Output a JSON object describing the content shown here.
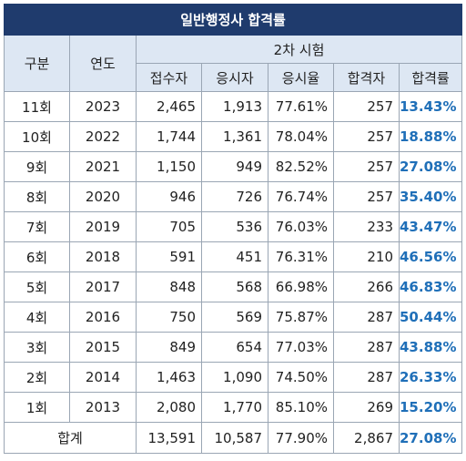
{
  "title": "일반행정사 합격률",
  "headers": {
    "category": "구분",
    "year": "연도",
    "group": "2차 시험",
    "applicants": "접수자",
    "examinees": "응시자",
    "exam_rate": "응시율",
    "passers": "합격자",
    "pass_rate": "합격률"
  },
  "rows": [
    {
      "round": "11회",
      "year": "2023",
      "applicants": "2,465",
      "examinees": "1,913",
      "exam_rate": "77.61%",
      "passers": "257",
      "pass_rate": "13.43%"
    },
    {
      "round": "10회",
      "year": "2022",
      "applicants": "1,744",
      "examinees": "1,361",
      "exam_rate": "78.04%",
      "passers": "257",
      "pass_rate": "18.88%"
    },
    {
      "round": "9회",
      "year": "2021",
      "applicants": "1,150",
      "examinees": "949",
      "exam_rate": "82.52%",
      "passers": "257",
      "pass_rate": "27.08%"
    },
    {
      "round": "8회",
      "year": "2020",
      "applicants": "946",
      "examinees": "726",
      "exam_rate": "76.74%",
      "passers": "257",
      "pass_rate": "35.40%"
    },
    {
      "round": "7회",
      "year": "2019",
      "applicants": "705",
      "examinees": "536",
      "exam_rate": "76.03%",
      "passers": "233",
      "pass_rate": "43.47%"
    },
    {
      "round": "6회",
      "year": "2018",
      "applicants": "591",
      "examinees": "451",
      "exam_rate": "76.31%",
      "passers": "210",
      "pass_rate": "46.56%"
    },
    {
      "round": "5회",
      "year": "2017",
      "applicants": "848",
      "examinees": "568",
      "exam_rate": "66.98%",
      "passers": "266",
      "pass_rate": "46.83%"
    },
    {
      "round": "4회",
      "year": "2016",
      "applicants": "750",
      "examinees": "569",
      "exam_rate": "75.87%",
      "passers": "287",
      "pass_rate": "50.44%"
    },
    {
      "round": "3회",
      "year": "2015",
      "applicants": "849",
      "examinees": "654",
      "exam_rate": "77.03%",
      "passers": "287",
      "pass_rate": "43.88%"
    },
    {
      "round": "2회",
      "year": "2014",
      "applicants": "1,463",
      "examinees": "1,090",
      "exam_rate": "74.50%",
      "passers": "287",
      "pass_rate": "26.33%"
    },
    {
      "round": "1회",
      "year": "2013",
      "applicants": "2,080",
      "examinees": "1,770",
      "exam_rate": "85.10%",
      "passers": "269",
      "pass_rate": "15.20%"
    }
  ],
  "total": {
    "label": "합계",
    "applicants": "13,591",
    "examinees": "10,587",
    "exam_rate": "77.90%",
    "passers": "2,867",
    "pass_rate": "27.08%"
  },
  "colors": {
    "title_bg": "#1f3b6d",
    "header_bg": "#dde7f3",
    "pass_rate_text": "#1f6fb8",
    "border": "#9aa6b4"
  }
}
